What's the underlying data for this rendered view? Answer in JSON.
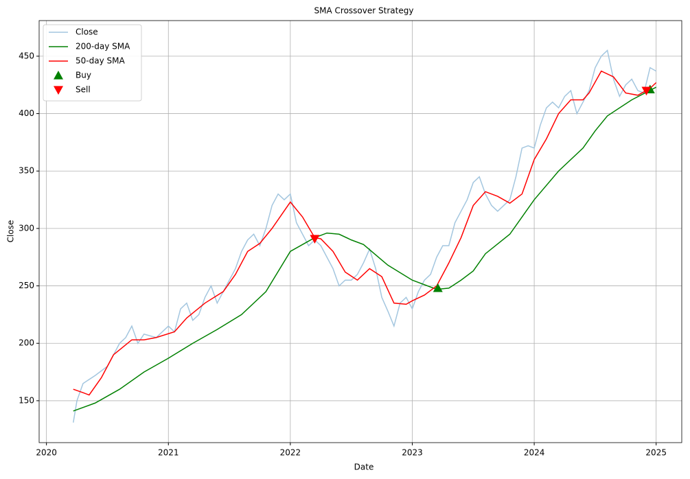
{
  "chart_data": {
    "type": "line",
    "title": "SMA Crossover Strategy",
    "x_label": "Date",
    "y_label": "Close",
    "xlim": [
      2019.94,
      2025.21
    ],
    "xticks": [
      2020,
      2021,
      2022,
      2023,
      2024,
      2025
    ],
    "ylim": [
      113.5,
      481
    ],
    "yticks": [
      150,
      200,
      250,
      300,
      350,
      400,
      450
    ],
    "grid": true,
    "legend": "upper left",
    "series": [
      {
        "name": "Close",
        "color": "#a3c6df",
        "style": "line",
        "x": [
          2020.22,
          2020.25,
          2020.3,
          2020.4,
          2020.5,
          2020.6,
          2020.65,
          2020.7,
          2020.75,
          2020.8,
          2020.9,
          2021.0,
          2021.05,
          2021.1,
          2021.15,
          2021.2,
          2021.25,
          2021.3,
          2021.35,
          2021.4,
          2021.45,
          2021.5,
          2021.55,
          2021.6,
          2021.65,
          2021.7,
          2021.75,
          2021.8,
          2021.85,
          2021.9,
          2021.95,
          2022.0,
          2022.05,
          2022.1,
          2022.15,
          2022.2,
          2022.25,
          2022.3,
          2022.35,
          2022.4,
          2022.45,
          2022.5,
          2022.55,
          2022.6,
          2022.65,
          2022.7,
          2022.75,
          2022.8,
          2022.85,
          2022.9,
          2022.95,
          2023.0,
          2023.05,
          2023.1,
          2023.15,
          2023.2,
          2023.25,
          2023.3,
          2023.35,
          2023.4,
          2023.45,
          2023.5,
          2023.55,
          2023.6,
          2023.65,
          2023.7,
          2023.75,
          2023.8,
          2023.85,
          2023.9,
          2023.95,
          2024.0,
          2024.05,
          2024.1,
          2024.15,
          2024.2,
          2024.25,
          2024.3,
          2024.35,
          2024.4,
          2024.45,
          2024.5,
          2024.55,
          2024.6,
          2024.65,
          2024.7,
          2024.75,
          2024.8,
          2024.85,
          2024.9,
          2024.95,
          2025.0
        ],
        "values": [
          131,
          150,
          165,
          172,
          180,
          200,
          205,
          215,
          200,
          208,
          205,
          215,
          210,
          230,
          235,
          220,
          225,
          240,
          250,
          235,
          245,
          255,
          265,
          280,
          290,
          295,
          285,
          300,
          320,
          330,
          325,
          330,
          305,
          295,
          285,
          290,
          285,
          275,
          265,
          250,
          255,
          255,
          260,
          270,
          282,
          265,
          240,
          228,
          215,
          235,
          240,
          230,
          245,
          255,
          260,
          275,
          285,
          285,
          305,
          315,
          325,
          340,
          345,
          330,
          320,
          315,
          320,
          325,
          345,
          370,
          372,
          370,
          390,
          405,
          410,
          405,
          415,
          420,
          400,
          410,
          420,
          440,
          450,
          455,
          430,
          415,
          425,
          430,
          420,
          418,
          440,
          437
        ]
      },
      {
        "name": "200-day SMA",
        "color": "#008000",
        "style": "line",
        "x": [
          2020.22,
          2020.4,
          2020.6,
          2020.8,
          2021.0,
          2021.2,
          2021.4,
          2021.6,
          2021.8,
          2022.0,
          2022.2,
          2022.3,
          2022.4,
          2022.5,
          2022.6,
          2022.8,
          2023.0,
          2023.2,
          2023.3,
          2023.4,
          2023.5,
          2023.6,
          2023.8,
          2024.0,
          2024.2,
          2024.4,
          2024.5,
          2024.6,
          2024.8,
          2025.0
        ],
        "values": [
          141,
          148,
          160,
          175,
          187,
          200,
          212,
          225,
          245,
          280,
          292,
          296,
          295,
          290,
          286,
          268,
          255,
          247,
          248,
          255,
          263,
          278,
          295,
          325,
          350,
          370,
          385,
          398,
          412,
          423
        ]
      },
      {
        "name": "50-day SMA",
        "color": "#ff0000",
        "style": "line",
        "x": [
          2020.22,
          2020.3,
          2020.35,
          2020.45,
          2020.55,
          2020.7,
          2020.8,
          2020.9,
          2021.05,
          2021.15,
          2021.3,
          2021.45,
          2021.55,
          2021.65,
          2021.75,
          2021.85,
          2022.0,
          2022.1,
          2022.2,
          2022.25,
          2022.35,
          2022.45,
          2022.55,
          2022.65,
          2022.75,
          2022.85,
          2022.95,
          2023.0,
          2023.1,
          2023.2,
          2023.3,
          2023.4,
          2023.5,
          2023.6,
          2023.7,
          2023.8,
          2023.9,
          2024.0,
          2024.1,
          2024.2,
          2024.3,
          2024.4,
          2024.45,
          2024.55,
          2024.65,
          2024.75,
          2024.85,
          2024.95,
          2025.0
        ],
        "values": [
          160,
          157,
          155,
          170,
          190,
          203,
          203,
          205,
          210,
          222,
          235,
          245,
          260,
          280,
          287,
          300,
          323,
          310,
          292,
          291,
          280,
          262,
          255,
          265,
          258,
          235,
          234,
          237,
          242,
          250,
          270,
          292,
          320,
          332,
          328,
          322,
          330,
          360,
          378,
          400,
          412,
          412,
          418,
          437,
          432,
          418,
          416,
          422,
          427
        ]
      },
      {
        "name": "Buy",
        "color": "#008000",
        "style": "marker-up",
        "x": [
          2023.21,
          2024.95
        ],
        "values": [
          248,
          421
        ]
      },
      {
        "name": "Sell",
        "color": "#ff0000",
        "style": "marker-down",
        "x": [
          2022.2,
          2024.92
        ],
        "values": [
          291,
          420
        ]
      }
    ]
  }
}
